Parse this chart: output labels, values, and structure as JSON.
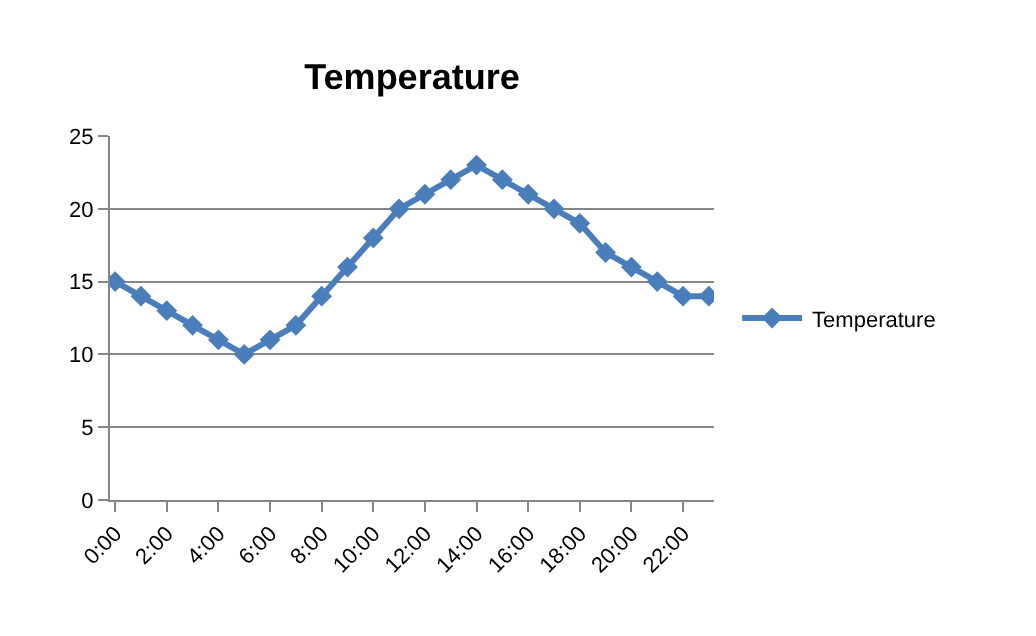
{
  "chart_data": {
    "type": "line",
    "title": "Temperature",
    "categories": [
      "0:00",
      null,
      "2:00",
      null,
      "4:00",
      null,
      "6:00",
      null,
      "8:00",
      null,
      "10:00",
      null,
      "12:00",
      null,
      "14:00",
      null,
      "16:00",
      null,
      "18:00",
      null,
      "20:00",
      null,
      "22:00",
      null
    ],
    "series": [
      {
        "name": "Temperature",
        "color": "#4a7ebb",
        "values": [
          15,
          14,
          13,
          12,
          11,
          10,
          11,
          12,
          14,
          16,
          18,
          20,
          21,
          22,
          23,
          22,
          21,
          20,
          19,
          17,
          16,
          15,
          14,
          14
        ]
      }
    ],
    "ylim": [
      0,
      25
    ],
    "yticks": [
      0,
      5,
      10,
      15,
      20,
      25
    ],
    "grid": "y",
    "legend": "right",
    "marker": "diamond",
    "line_style": "solid"
  }
}
